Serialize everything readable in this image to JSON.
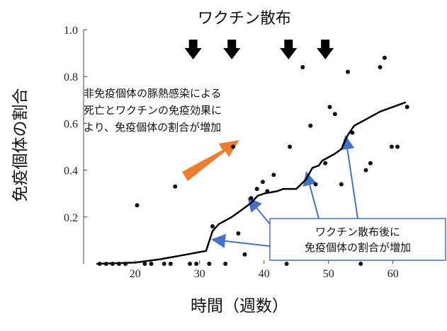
{
  "chart_data": {
    "type": "scatter",
    "title": "ワクチン散布",
    "xlabel": "時間（週数）",
    "ylabel": "免疫個体の割合",
    "xlim": [
      12,
      63
    ],
    "ylim": [
      0,
      1.0
    ],
    "xticks": [
      20,
      30,
      40,
      50,
      60
    ],
    "yticks": [
      0.2,
      0.4,
      0.6,
      0.8,
      1.0
    ],
    "ytick_labels": [
      "0.2",
      "0.4",
      "0.6",
      "0.8",
      "1.0"
    ],
    "grid": false,
    "series": [
      {
        "kind": "points",
        "color": "#111111",
        "points": [
          [
            14.5,
            0
          ],
          [
            15.5,
            0
          ],
          [
            16.5,
            0
          ],
          [
            17.5,
            0
          ],
          [
            18.5,
            0
          ],
          [
            20.3,
            0.25
          ],
          [
            21.5,
            0
          ],
          [
            22.5,
            0
          ],
          [
            24.5,
            0
          ],
          [
            25.5,
            0
          ],
          [
            26.2,
            0.33
          ],
          [
            28.5,
            0
          ],
          [
            29.5,
            0
          ],
          [
            31.5,
            0
          ],
          [
            32,
            0.16
          ],
          [
            34,
            0
          ],
          [
            35.2,
            0.5
          ],
          [
            36,
            0.13
          ],
          [
            37,
            0.04
          ],
          [
            38,
            0.28
          ],
          [
            38.9,
            0.32
          ],
          [
            39.8,
            0.35
          ],
          [
            40.5,
            0.31
          ],
          [
            41.5,
            0.38
          ],
          [
            43.5,
            0
          ],
          [
            44,
            0.5
          ],
          [
            46,
            0.84
          ],
          [
            47.2,
            0.59
          ],
          [
            48,
            0.34
          ],
          [
            49.5,
            0.43
          ],
          [
            50.2,
            0.67
          ],
          [
            51,
            0.64
          ],
          [
            52,
            0.34
          ],
          [
            53,
            0.82
          ],
          [
            53.7,
            0.56
          ],
          [
            55,
            0
          ],
          [
            55.8,
            0.4
          ],
          [
            56.5,
            0.43
          ],
          [
            58,
            0.84
          ],
          [
            58.7,
            0.88
          ],
          [
            59.8,
            0.5
          ],
          [
            60.7,
            0.5
          ],
          [
            62.2,
            0.67
          ]
        ]
      },
      {
        "kind": "line",
        "color": "#000000",
        "points": [
          [
            14,
            0
          ],
          [
            20,
            0.005
          ],
          [
            24,
            0.02
          ],
          [
            28,
            0.04
          ],
          [
            30,
            0.05
          ],
          [
            31,
            0.055
          ],
          [
            32,
            0.14
          ],
          [
            33,
            0.17
          ],
          [
            35,
            0.2
          ],
          [
            37,
            0.24
          ],
          [
            38,
            0.26
          ],
          [
            39,
            0.29
          ],
          [
            40,
            0.3
          ],
          [
            42,
            0.31
          ],
          [
            43,
            0.32
          ],
          [
            45,
            0.32
          ],
          [
            46.5,
            0.36
          ],
          [
            47.5,
            0.41
          ],
          [
            48.5,
            0.42
          ],
          [
            49,
            0.44
          ],
          [
            51,
            0.47
          ],
          [
            52,
            0.49
          ],
          [
            53,
            0.55
          ],
          [
            54,
            0.59
          ],
          [
            56,
            0.62
          ],
          [
            58,
            0.65
          ],
          [
            60,
            0.67
          ],
          [
            62,
            0.69
          ]
        ]
      }
    ],
    "vaccination_weeks": [
      29,
      35,
      43.8,
      49.5
    ],
    "annotations": {
      "note": [
        "非免疫個体の豚熱感染による",
        "死亡とワクチンの免疫効果に",
        "より、免疫個体の割合が増加"
      ],
      "box": [
        "ワクチン散布後に",
        "免疫個体の割合が増加"
      ]
    },
    "colors": {
      "highlight_arrow": "#ED7D31",
      "pointer_arrow": "#4472C4",
      "box_border": "#4472C4"
    }
  }
}
